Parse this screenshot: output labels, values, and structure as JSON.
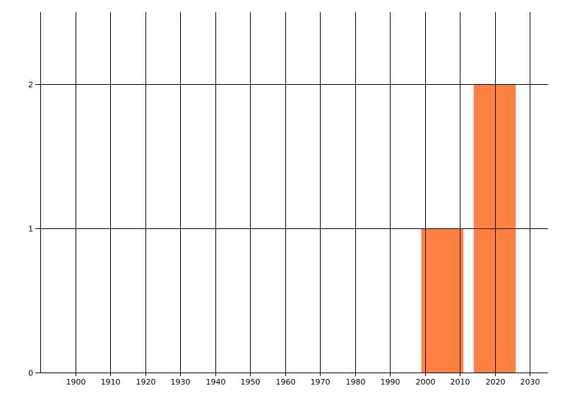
{
  "chart_data": {
    "type": "bar",
    "title": "",
    "xlabel": "",
    "ylabel": "",
    "xlim": [
      1890,
      2035.5
    ],
    "ylim": [
      0,
      2.5
    ],
    "x_ticks": [
      1900,
      1910,
      1920,
      1930,
      1940,
      1950,
      1960,
      1970,
      1980,
      1990,
      2000,
      2010,
      2020,
      2030
    ],
    "y_ticks": [
      0,
      1,
      2
    ],
    "grid": true,
    "bar_width": 12,
    "bars": [
      {
        "x": 2005,
        "value": 1
      },
      {
        "x": 2020,
        "value": 2
      }
    ],
    "colors": {
      "bar": "#FF8040",
      "grid": "#000000"
    }
  }
}
